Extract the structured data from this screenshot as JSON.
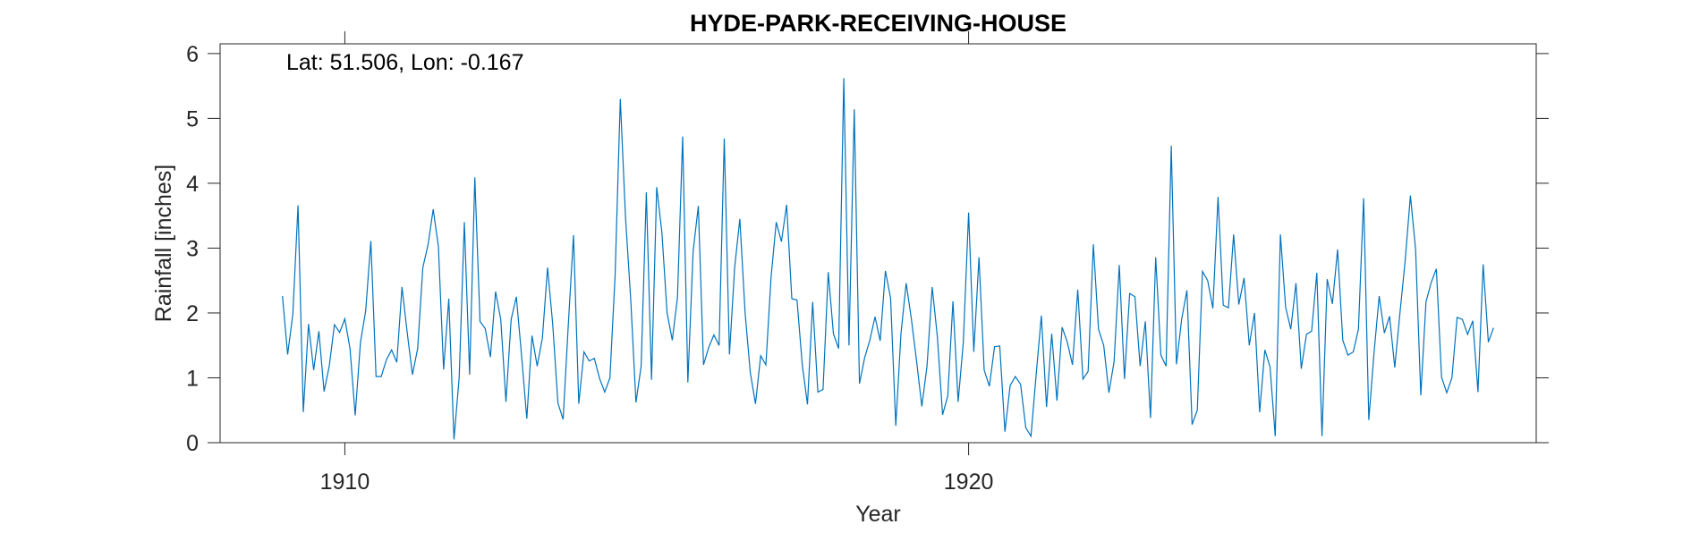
{
  "chart_data": {
    "type": "line",
    "title": "HYDE-PARK-RECEIVING-HOUSE",
    "xlabel": "Year",
    "ylabel": "Rainfall [inches]",
    "annotation": "Lat: 51.506, Lon: -0.167",
    "xlim": [
      1908,
      1929.1
    ],
    "ylim": [
      0,
      6.15
    ],
    "x_tick_labels": [
      "1910",
      "1920"
    ],
    "x_ticks": [
      1910,
      1920
    ],
    "y_tick_labels": [
      "0",
      "1",
      "2",
      "3",
      "4",
      "5",
      "6"
    ],
    "y_ticks": [
      0,
      1,
      2,
      3,
      4,
      5,
      6
    ],
    "grid": false,
    "line_color": "#0072BD",
    "x_start": 1909.0,
    "x_step": 0.08333,
    "values": [
      2.26,
      1.36,
      1.98,
      3.66,
      0.47,
      1.83,
      1.12,
      1.72,
      0.79,
      1.18,
      1.82,
      1.7,
      1.91,
      1.45,
      0.42,
      1.55,
      2.03,
      3.11,
      1.02,
      1.02,
      1.28,
      1.43,
      1.24,
      2.4,
      1.7,
      1.05,
      1.45,
      2.7,
      3.05,
      3.6,
      3.02,
      1.13,
      2.22,
      0.05,
      1.0,
      3.4,
      1.05,
      4.09,
      1.87,
      1.76,
      1.32,
      2.33,
      1.9,
      0.63,
      1.9,
      2.25,
      1.35,
      0.37,
      1.65,
      1.18,
      1.61,
      2.7,
      1.82,
      0.61,
      0.36,
      1.82,
      3.2,
      0.6,
      1.4,
      1.26,
      1.3,
      0.99,
      0.78,
      1.0,
      2.58,
      5.3,
      3.48,
      2.22,
      0.62,
      1.18,
      3.86,
      0.97,
      3.94,
      3.24,
      2.0,
      1.58,
      2.24,
      4.72,
      0.93,
      2.95,
      3.65,
      1.2,
      1.47,
      1.66,
      1.5,
      4.69,
      1.36,
      2.7,
      3.45,
      2.0,
      1.08,
      0.6,
      1.34,
      1.2,
      2.55,
      3.4,
      3.1,
      3.67,
      2.22,
      2.2,
      1.2,
      0.59,
      2.17,
      0.78,
      0.82,
      2.63,
      1.68,
      1.45,
      5.62,
      1.5,
      5.14,
      0.91,
      1.31,
      1.58,
      1.94,
      1.57,
      2.65,
      2.23,
      0.26,
      1.68,
      2.46,
      1.9,
      1.25,
      0.56,
      1.18,
      2.4,
      1.63,
      0.43,
      0.72,
      2.18,
      0.63,
      1.55,
      3.55,
      1.4,
      2.86,
      1.12,
      0.87,
      1.48,
      1.49,
      0.17,
      0.88,
      1.02,
      0.9,
      0.23,
      0.1,
      1.05,
      1.96,
      0.55,
      1.68,
      0.65,
      1.78,
      1.55,
      1.2,
      2.36,
      0.98,
      1.1,
      3.06,
      1.75,
      1.5,
      0.77,
      1.25,
      2.74,
      0.98,
      2.3,
      2.25,
      1.18,
      1.87,
      0.38,
      2.86,
      1.35,
      1.18,
      4.58,
      1.21,
      1.9,
      2.35,
      0.28,
      0.5,
      2.64,
      2.5,
      2.07,
      3.79,
      2.12,
      2.08,
      3.21,
      2.13,
      2.54,
      1.5,
      2.0,
      0.47,
      1.43,
      1.17,
      0.1,
      3.21,
      2.09,
      1.75,
      2.46,
      1.14,
      1.67,
      1.72,
      2.62,
      0.1,
      2.52,
      2.14,
      2.98,
      1.58,
      1.35,
      1.4,
      1.75,
      3.77,
      0.35,
      1.38,
      2.26,
      1.69,
      1.95,
      1.16,
      2.0,
      2.8,
      3.81,
      2.98,
      0.73,
      2.17,
      2.47,
      2.68,
      1.01,
      0.77,
      1.0,
      1.93,
      1.9,
      1.67,
      1.88,
      0.78,
      2.75,
      1.55,
      1.77
    ]
  }
}
